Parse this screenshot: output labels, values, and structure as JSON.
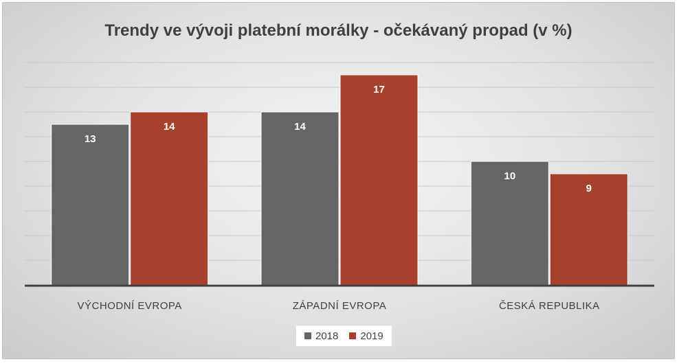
{
  "chart_data": {
    "type": "bar",
    "title": "Trendy ve vývoji platební morálky - očekávaný propad (v %)",
    "categories": [
      "VÝCHODNÍ EVROPA",
      "ZÁPADNÍ EVROPA",
      "ČESKÁ REPUBLIKA"
    ],
    "series": [
      {
        "name": "2018",
        "values": [
          13,
          14,
          10
        ],
        "color": "#666467"
      },
      {
        "name": "2019",
        "values": [
          14,
          17,
          9
        ],
        "color": "#a6412b"
      }
    ],
    "xlabel": "",
    "ylabel": "",
    "ylim": [
      0,
      18
    ],
    "grid": true,
    "legend": "bottom",
    "data_labels": true
  }
}
